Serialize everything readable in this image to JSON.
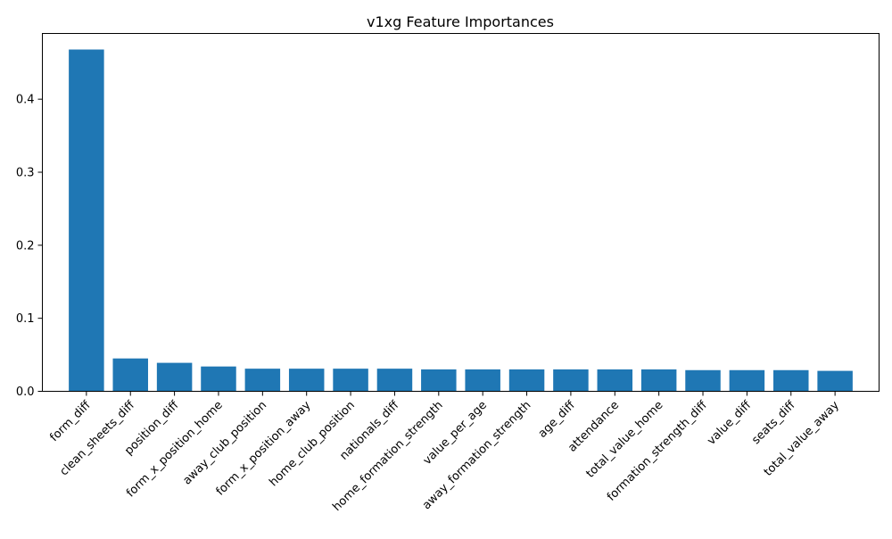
{
  "chart_data": {
    "type": "bar",
    "title": "v1xg Feature Importances",
    "xlabel": "",
    "ylabel": "",
    "ylim": [
      0,
      0.49
    ],
    "yticks": [
      0.0,
      0.1,
      0.2,
      0.3,
      0.4
    ],
    "ytick_labels": [
      "0.0",
      "0.1",
      "0.2",
      "0.3",
      "0.4"
    ],
    "grid": false,
    "bar_color": "#1f77b4",
    "xtick_rotation_deg": 45,
    "categories": [
      "form_diff",
      "clean_sheets_diff",
      "position_diff",
      "form_x_position_home",
      "away_club_position",
      "form_x_position_away",
      "home_club_position",
      "nationals_diff",
      "home_formation_strength",
      "value_per_age",
      "away_formation_strength",
      "age_diff",
      "attendance",
      "total_value_home",
      "formation_strength_diff",
      "value_diff",
      "seats_diff",
      "total_value_away"
    ],
    "values": [
      0.468,
      0.045,
      0.039,
      0.034,
      0.031,
      0.031,
      0.031,
      0.031,
      0.03,
      0.03,
      0.03,
      0.03,
      0.03,
      0.03,
      0.029,
      0.029,
      0.029,
      0.028
    ]
  }
}
